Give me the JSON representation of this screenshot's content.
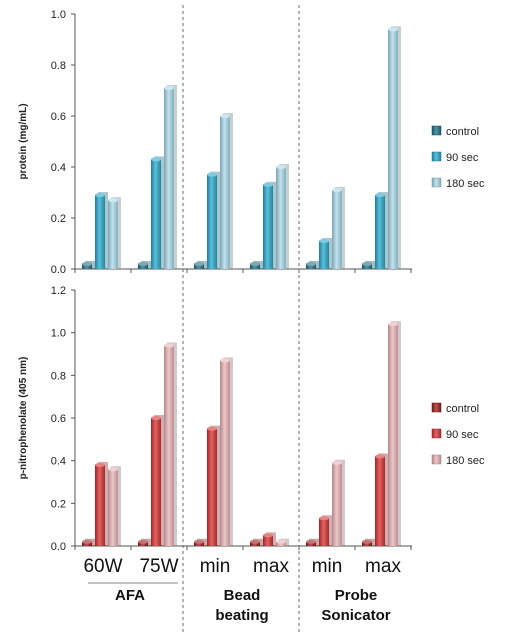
{
  "chart_data": [
    {
      "type": "bar",
      "ylabel": "protein (mg/mL)",
      "ylim": [
        0,
        1.0
      ],
      "yticks": [
        "0.0",
        "0.2",
        "0.4",
        "0.6",
        "0.8",
        "1.0"
      ],
      "series": [
        {
          "name": "control",
          "color": "#1f6e86",
          "values": [
            0.02,
            0.02,
            0.02,
            0.02,
            0.02,
            0.02
          ]
        },
        {
          "name": "90 sec",
          "color": "#27a9cc",
          "values": [
            0.29,
            0.43,
            0.37,
            0.33,
            0.11,
            0.29
          ]
        },
        {
          "name": "180 sec",
          "color": "#a9d9ea",
          "values": [
            0.27,
            0.71,
            0.6,
            0.4,
            0.31,
            0.94
          ]
        }
      ]
    },
    {
      "type": "bar",
      "ylabel": "p-nitrophenolate (405 nm)",
      "ylim": [
        0,
        1.2
      ],
      "yticks": [
        "0.0",
        "0.2",
        "0.4",
        "0.6",
        "0.8",
        "1.0",
        "1.2"
      ],
      "series": [
        {
          "name": "control",
          "color": "#9e1b1b",
          "values": [
            0.02,
            0.02,
            0.02,
            0.02,
            0.02,
            0.02
          ]
        },
        {
          "name": "90 sec",
          "color": "#d63030",
          "values": [
            0.38,
            0.6,
            0.55,
            0.05,
            0.13,
            0.42
          ]
        },
        {
          "name": "180 sec",
          "color": "#eab3b6",
          "values": [
            0.36,
            0.94,
            0.87,
            0.02,
            0.39,
            1.04
          ]
        }
      ]
    }
  ],
  "categories": [
    "60W",
    "75W",
    "min",
    "max",
    "min",
    "max"
  ],
  "groups": [
    {
      "lines": [
        "AFA"
      ]
    },
    {
      "lines": [
        "Bead",
        "beating"
      ]
    },
    {
      "lines": [
        "Probe",
        "Sonicator"
      ]
    }
  ]
}
